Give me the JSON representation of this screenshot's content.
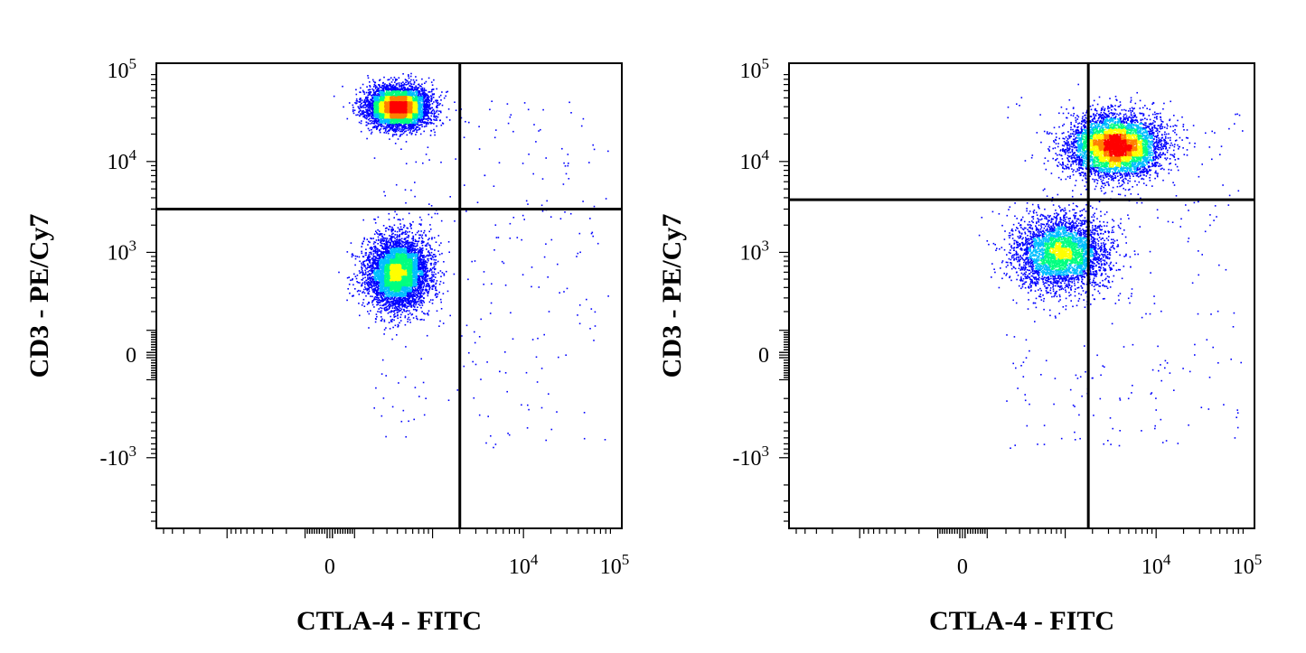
{
  "colors": {
    "density_scale": [
      "#0000ff",
      "#00bfff",
      "#00ff80",
      "#ffff00",
      "#ff8000",
      "#ff0000"
    ],
    "frame": "#000000",
    "gate": "#000000"
  },
  "chart_data": [
    {
      "type": "scatter",
      "title": "",
      "xlabel": "CTLA-4 - FITC",
      "ylabel": "CD3 - PE/Cy7",
      "x_scale": "biexponential",
      "y_scale": "biexponential",
      "x_tick_labels": [
        "0",
        "10^4",
        "10^5"
      ],
      "y_tick_labels": [
        "10^5",
        "10^4",
        "10^3",
        "0",
        "-10^3"
      ],
      "quadrant_gate": {
        "x": 2000,
        "y": 3000
      },
      "populations": [
        {
          "center": [
            400,
            40000
          ],
          "spread": [
            0.3,
            0.2
          ],
          "density": "high"
        },
        {
          "center": [
            400,
            600
          ],
          "spread": [
            0.3,
            0.35
          ],
          "density": "high"
        }
      ]
    },
    {
      "type": "scatter",
      "title": "",
      "xlabel": "CTLA-4 - FITC",
      "ylabel": "CD3 - PE/Cy7",
      "x_scale": "biexponential",
      "y_scale": "biexponential",
      "x_tick_labels": [
        "0",
        "10^4",
        "10^5"
      ],
      "y_tick_labels": [
        "10^5",
        "10^4",
        "10^3",
        "0",
        "-10^3"
      ],
      "quadrant_gate": {
        "x": 1800,
        "y": 3800
      },
      "populations": [
        {
          "center": [
            3500,
            15000
          ],
          "spread": [
            0.45,
            0.3
          ],
          "density": "high"
        },
        {
          "center": [
            900,
            1000
          ],
          "spread": [
            0.45,
            0.35
          ],
          "density": "medium"
        }
      ]
    }
  ]
}
